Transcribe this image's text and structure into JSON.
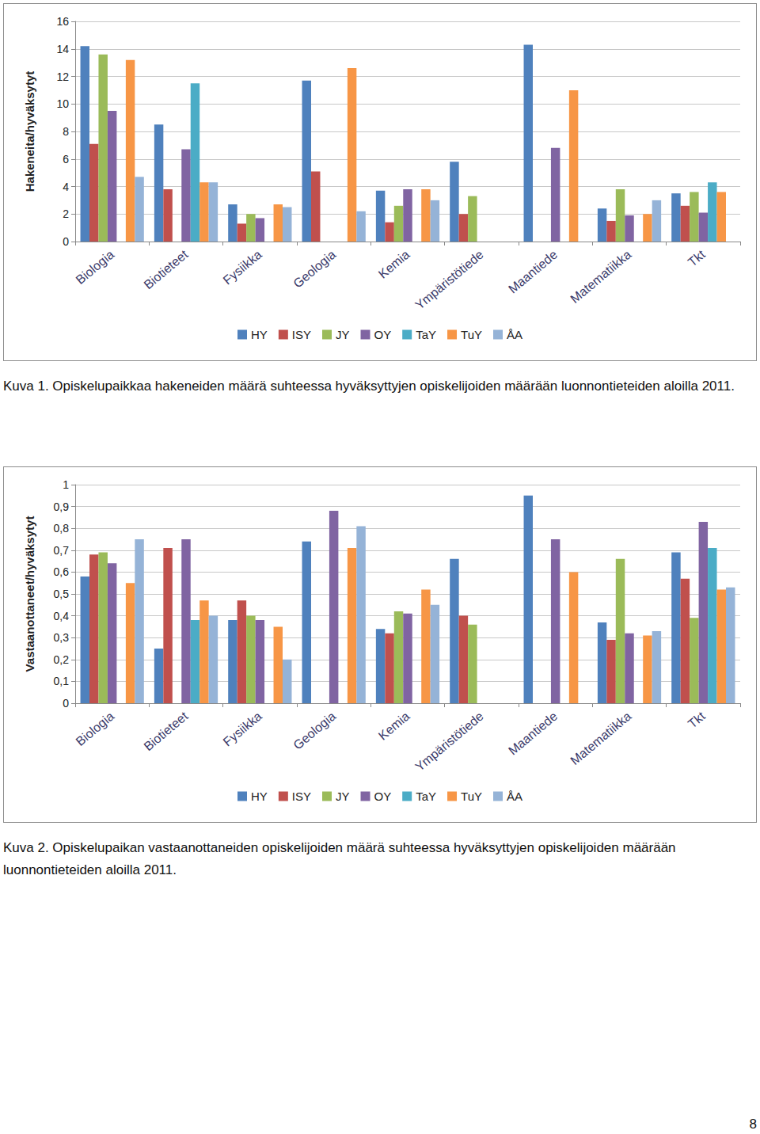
{
  "chart_data": [
    {
      "type": "bar",
      "ylabel": "Hakeneita/hyväksytyt",
      "caption": "Kuva 1. Opiskelupaikkaa hakeneiden määrä suhteessa hyväksyttyjen opiskelijoiden määrään luonnontieteiden aloilla 2011.",
      "categories": [
        "Biologia",
        "Biotieteet",
        "Fysiikka",
        "Geologia",
        "Kemia",
        "Ympäristötiede",
        "Maantiede",
        "Matematiikka",
        "Tkt"
      ],
      "series": [
        {
          "name": "HY",
          "color": "#4f81bd",
          "values": [
            14.2,
            8.5,
            2.7,
            11.7,
            3.7,
            5.8,
            14.3,
            2.4,
            3.5
          ]
        },
        {
          "name": "ISY",
          "color": "#c0504d",
          "values": [
            7.1,
            3.8,
            1.3,
            5.1,
            1.4,
            2.0,
            null,
            1.5,
            2.6
          ]
        },
        {
          "name": "JY",
          "color": "#9bbb59",
          "values": [
            13.6,
            null,
            2.0,
            null,
            2.6,
            3.3,
            null,
            3.8,
            3.6
          ]
        },
        {
          "name": "OY",
          "color": "#8064a2",
          "values": [
            9.5,
            6.7,
            1.7,
            null,
            3.8,
            null,
            6.8,
            1.9,
            2.1
          ]
        },
        {
          "name": "TaY",
          "color": "#4bacc6",
          "values": [
            null,
            11.5,
            null,
            null,
            null,
            null,
            null,
            null,
            4.3
          ]
        },
        {
          "name": "TuY",
          "color": "#f79646",
          "values": [
            13.2,
            4.3,
            2.7,
            12.6,
            3.8,
            null,
            11.0,
            2.0,
            3.6
          ]
        },
        {
          "name": "ÅA",
          "color": "#95b3d7",
          "values": [
            4.7,
            4.3,
            2.5,
            2.2,
            3.0,
            null,
            null,
            3.0,
            null
          ]
        }
      ],
      "ylim": [
        0,
        16
      ],
      "yticks": [
        0,
        2,
        4,
        6,
        8,
        10,
        12,
        14,
        16
      ],
      "grid": true,
      "legend": "bottom"
    },
    {
      "type": "bar",
      "ylabel": "Vastaanottaneet/hyväksytyt",
      "caption": "Kuva 2. Opiskelupaikan vastaanottaneiden opiskelijoiden määrä suhteessa hyväksyttyjen opiskelijoiden määrään luonnontieteiden aloilla 2011.",
      "categories": [
        "Biologia",
        "Biotieteet",
        "Fysiikka",
        "Geologia",
        "Kemia",
        "Ympäristötiede",
        "Maantiede",
        "Matematiikka",
        "Tkt"
      ],
      "series": [
        {
          "name": "HY",
          "color": "#4f81bd",
          "values": [
            0.58,
            0.25,
            0.38,
            0.74,
            0.34,
            0.66,
            0.95,
            0.37,
            0.69
          ]
        },
        {
          "name": "ISY",
          "color": "#c0504d",
          "values": [
            0.68,
            0.71,
            0.47,
            null,
            0.32,
            0.4,
            null,
            0.29,
            0.57
          ]
        },
        {
          "name": "JY",
          "color": "#9bbb59",
          "values": [
            0.69,
            null,
            0.4,
            null,
            0.42,
            0.36,
            null,
            0.66,
            0.39
          ]
        },
        {
          "name": "OY",
          "color": "#8064a2",
          "values": [
            0.64,
            0.75,
            0.38,
            0.88,
            0.41,
            null,
            0.75,
            0.32,
            0.83
          ]
        },
        {
          "name": "TaY",
          "color": "#4bacc6",
          "values": [
            null,
            0.38,
            null,
            null,
            null,
            null,
            null,
            null,
            0.71
          ]
        },
        {
          "name": "TuY",
          "color": "#f79646",
          "values": [
            0.55,
            0.47,
            0.35,
            0.71,
            0.52,
            null,
            0.6,
            0.31,
            0.52
          ]
        },
        {
          "name": "ÅA",
          "color": "#95b3d7",
          "values": [
            0.75,
            0.4,
            0.2,
            0.81,
            0.45,
            null,
            null,
            0.33,
            0.53
          ]
        }
      ],
      "ylim": [
        0,
        1
      ],
      "yticks": [
        0,
        {
          "value": 0.1,
          "label": "0,1"
        },
        {
          "value": 0.2,
          "label": "0,2"
        },
        {
          "value": 0.3,
          "label": "0,3"
        },
        {
          "value": 0.4,
          "label": "0,4"
        },
        {
          "value": 0.5,
          "label": "0,5"
        },
        {
          "value": 0.6,
          "label": "0,6"
        },
        {
          "value": 0.7,
          "label": "0,7"
        },
        {
          "value": 0.8,
          "label": "0,8"
        },
        {
          "value": 0.9,
          "label": "0,9"
        },
        1
      ],
      "grid": true,
      "legend": "bottom"
    }
  ],
  "page_number": 8
}
